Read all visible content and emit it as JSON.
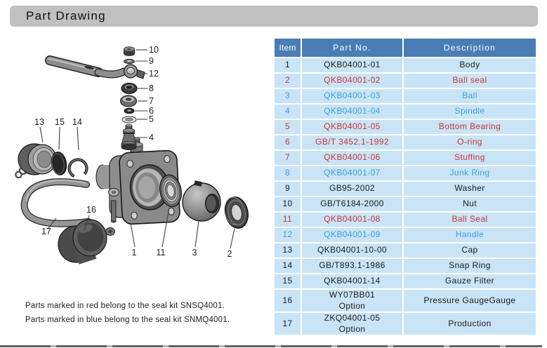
{
  "page": {
    "title": "Part Drawing",
    "notes": [
      "Parts marked in red  belong to the seal kit SNSQ4001.",
      "Parts marked in blue  belong to the seal kit SNMQ4001."
    ]
  },
  "colors": {
    "title_bar_bg": "#c0c0c0",
    "header_bg": "#4a7db5",
    "row_bg": "#c9e4f6",
    "red": "#cc3333",
    "blue": "#38a0dc",
    "black": "#1a1a1a"
  },
  "table": {
    "columns": [
      "Item",
      "Part No.",
      "Description"
    ],
    "rows": [
      {
        "item": "1",
        "part_no": "QKB04001-01",
        "description": "Body",
        "color": "black"
      },
      {
        "item": "2",
        "part_no": "QKB04001-02",
        "description": "Ball seal",
        "color": "red"
      },
      {
        "item": "3",
        "part_no": "QKB04001-03",
        "description": "Ball",
        "color": "blue"
      },
      {
        "item": "4",
        "part_no": "QKB04001-04",
        "description": "Spindle",
        "color": "blue"
      },
      {
        "item": "5",
        "part_no": "QKB04001-05",
        "description": "Bottom Bearing",
        "color": "red"
      },
      {
        "item": "6",
        "part_no": "GB/T 3452.1-1992",
        "description": "O-ring",
        "color": "red"
      },
      {
        "item": "7",
        "part_no": "QKB04001-06",
        "description": "Stuffing",
        "color": "red"
      },
      {
        "item": "8",
        "part_no": "QKB04001-07",
        "description": "Junk Ring",
        "color": "blue"
      },
      {
        "item": "9",
        "part_no": "GB95-2002",
        "description": "Washer",
        "color": "black"
      },
      {
        "item": "10",
        "part_no": "GB/T6184-2000",
        "description": "Nut",
        "color": "black"
      },
      {
        "item": "11",
        "part_no": "QKB04001-08",
        "description": "Ball Seal",
        "color": "red"
      },
      {
        "item": "12",
        "part_no": "QKB04001-09",
        "description": "Handle",
        "color": "blue"
      },
      {
        "item": "13",
        "part_no": "QKB04001-10-00",
        "description": "Cap",
        "color": "black"
      },
      {
        "item": "14",
        "part_no": "GB/T893.1-1986",
        "description": "Snap Ring",
        "color": "black"
      },
      {
        "item": "15",
        "part_no": "QKB04001-14",
        "description": "Gauze Filter",
        "color": "black"
      },
      {
        "item": "16",
        "part_no": "WY07BB01\nOption",
        "description": "Pressure GaugeGauge",
        "color": "black"
      },
      {
        "item": "17",
        "part_no": "ZKQ04001-05\nOption",
        "description": "Production",
        "color": "black"
      }
    ]
  },
  "diagram": {
    "callouts": {
      "n1": "1",
      "n2": "2",
      "n3": "3",
      "n4": "4",
      "n5": "5",
      "n6": "6",
      "n7": "7",
      "n8": "8",
      "n9": "9",
      "n10": "10",
      "n11": "11",
      "n12": "12",
      "n13": "13",
      "n14": "14",
      "n15": "15",
      "n16": "16",
      "n17": "17"
    }
  }
}
